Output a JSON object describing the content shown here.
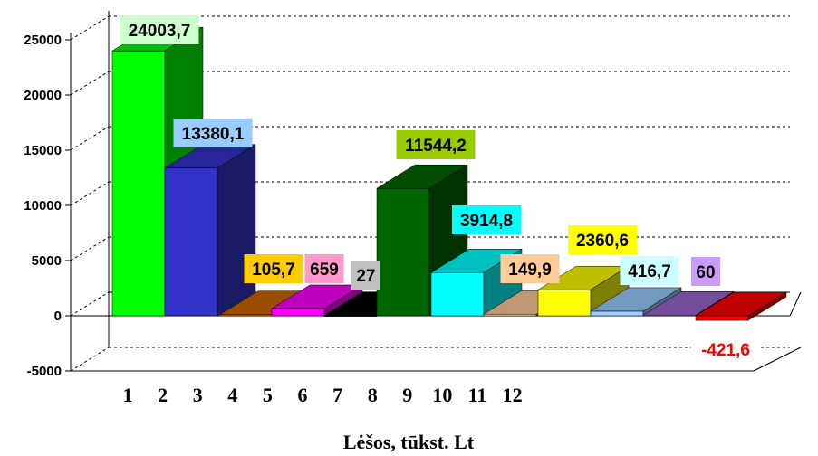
{
  "chart_data": {
    "type": "bar",
    "categories": [
      "1",
      "2",
      "3",
      "4",
      "5",
      "6",
      "7",
      "8",
      "9",
      "10",
      "11",
      "12"
    ],
    "values": [
      24003.7,
      13380.1,
      105.7,
      659,
      27,
      11544.2,
      3914.8,
      149.9,
      2360.6,
      416.7,
      60,
      -421.6
    ],
    "labels": [
      "24003,7",
      "13380,1",
      "105,7",
      "659",
      "27",
      "11544,2",
      "3914,8",
      "149,9",
      "2360,6",
      "416,7",
      "60",
      "-421,6"
    ],
    "xlabel": "Lėšos, tūkst. Lt",
    "ylabel": "",
    "ylim": [
      -5000,
      25000
    ],
    "yticks": [
      -5000,
      0,
      5000,
      10000,
      15000,
      20000,
      25000
    ],
    "ytick_labels": [
      "-5000",
      "0",
      "5000",
      "10000",
      "15000",
      "20000",
      "25000"
    ],
    "grid": true,
    "legend": "none",
    "bar_colors": [
      "#00ff00",
      "#3333cc",
      "#cc6600",
      "#ff00ff",
      "#000000",
      "#006600",
      "#00ffff",
      "#ffcc99",
      "#ffff00",
      "#99ccff",
      "#9966cc",
      "#ff0000"
    ],
    "label_colors": [
      "#ccffcc",
      "#99ccff",
      "#ffcc00",
      "#ff99cc",
      "#c0c0c0",
      "#99cc00",
      "#00ffff",
      "#ffcc99",
      "#ffff00",
      "#ccffff",
      "#cc99ff",
      "#ffffff"
    ],
    "label_text_colors": [
      "#000000",
      "#000000",
      "#000000",
      "#000000",
      "#000000",
      "#000000",
      "#000000",
      "#000000",
      "#000000",
      "#000000",
      "#000000",
      "#ff0000"
    ]
  }
}
